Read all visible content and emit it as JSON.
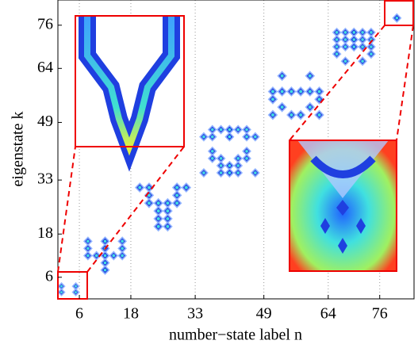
{
  "chart_data": {
    "type": "blockmap",
    "x_label": "number−state label n",
    "y_label": "eigenstate k",
    "xlim": [
      1,
      84
    ],
    "ylim": [
      0,
      83
    ],
    "xticks": [
      6,
      18,
      33,
      49,
      64,
      76
    ],
    "yticks": [
      6,
      18,
      33,
      49,
      64,
      76
    ],
    "grid": "x",
    "color": "#1f3fe0",
    "blocks": [
      {
        "x": [
          1,
          6
        ],
        "y": [
          1,
          6
        ]
      },
      {
        "x": [
          7,
          17
        ],
        "y": [
          7,
          17
        ]
      },
      {
        "x": [
          19,
          32
        ],
        "y": [
          19,
          32
        ]
      },
      {
        "x": [
          34,
          48
        ],
        "y": [
          34,
          48
        ]
      },
      {
        "x": [
          50,
          63
        ],
        "y": [
          50,
          63
        ]
      },
      {
        "x": [
          65,
          75
        ],
        "y": [
          65,
          75
        ]
      },
      {
        "x": [
          77,
          83
        ],
        "y": [
          77,
          83
        ]
      }
    ]
  }
}
